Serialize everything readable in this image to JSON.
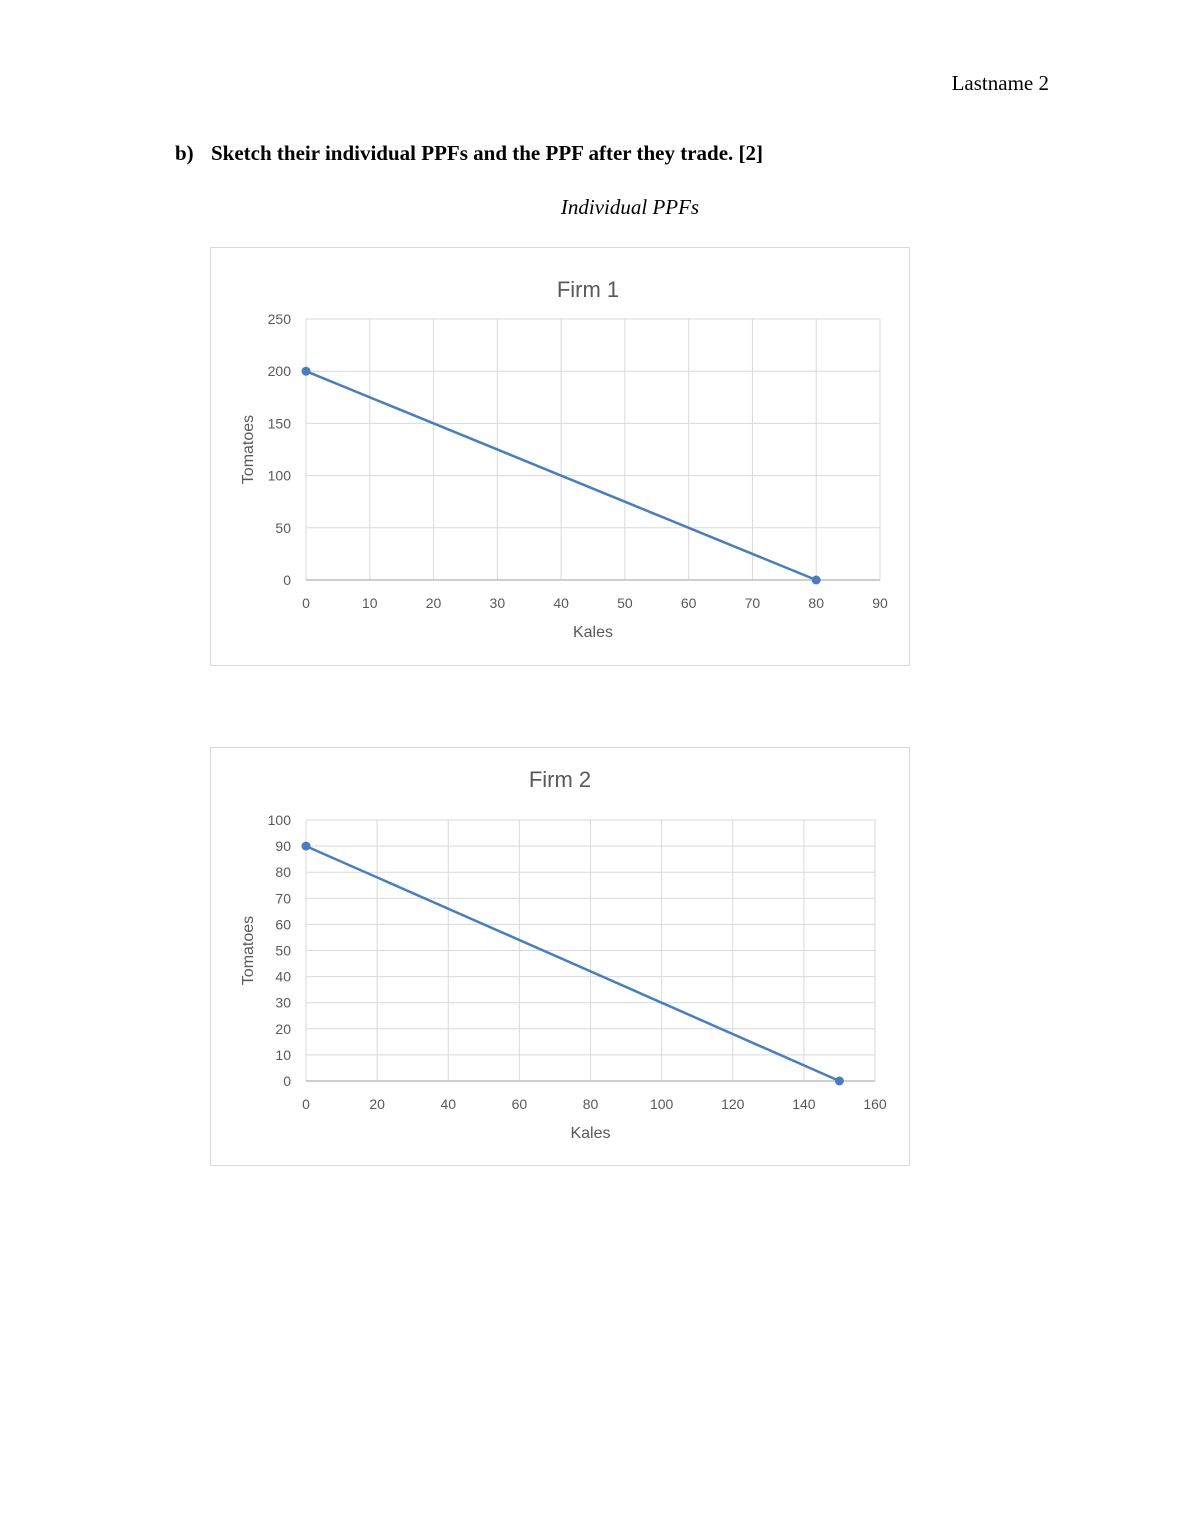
{
  "header": {
    "running_head": "Lastname 2"
  },
  "question": {
    "label": "b)",
    "text": "Sketch their individual PPFs and the PPF after they trade. [2]"
  },
  "caption": "Individual PPFs",
  "chart_data": [
    {
      "type": "line",
      "title": "Firm 1",
      "xlabel": "Kales",
      "ylabel": "Tomatoes",
      "xlim": [
        0,
        90
      ],
      "ylim": [
        0,
        250
      ],
      "xticks": [
        0,
        10,
        20,
        30,
        40,
        50,
        60,
        70,
        80,
        90
      ],
      "yticks": [
        0,
        50,
        100,
        150,
        200,
        250
      ],
      "grid": true,
      "series": [
        {
          "x": [
            0,
            80
          ],
          "y": [
            200,
            0
          ],
          "color": "#4a7ebb",
          "markers": true
        }
      ]
    },
    {
      "type": "line",
      "title": "Firm 2",
      "xlabel": "Kales",
      "ylabel": "Tomatoes",
      "xlim": [
        0,
        160
      ],
      "ylim": [
        0,
        100
      ],
      "xticks": [
        0,
        20,
        40,
        60,
        80,
        100,
        120,
        140,
        160
      ],
      "yticks": [
        0,
        10,
        20,
        30,
        40,
        50,
        60,
        70,
        80,
        90,
        100
      ],
      "grid": true,
      "series": [
        {
          "x": [
            0,
            150
          ],
          "y": [
            90,
            0
          ],
          "color": "#4a7ebb",
          "markers": true
        }
      ]
    }
  ]
}
